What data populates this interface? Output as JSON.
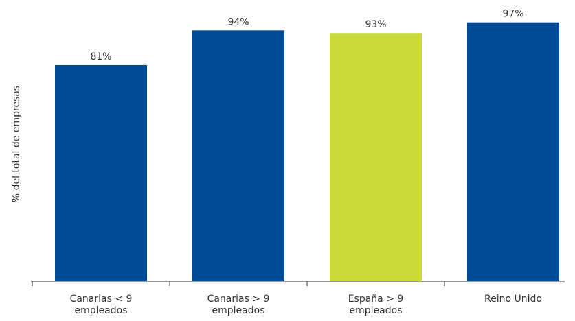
{
  "chart_data": {
    "type": "bar",
    "ylabel": "% del total de empresas",
    "categories": [
      "Canarias < 9 empleados",
      "Canarias > 9 empleados",
      "España > 9 empleados",
      "Reino Unido"
    ],
    "values": [
      81,
      94,
      93,
      97
    ],
    "value_labels": [
      "81%",
      "94%",
      "93%",
      "97%"
    ],
    "colors": [
      "#004b96",
      "#004b96",
      "#c9da3a",
      "#004b96"
    ],
    "ylim": [
      0,
      100
    ]
  }
}
